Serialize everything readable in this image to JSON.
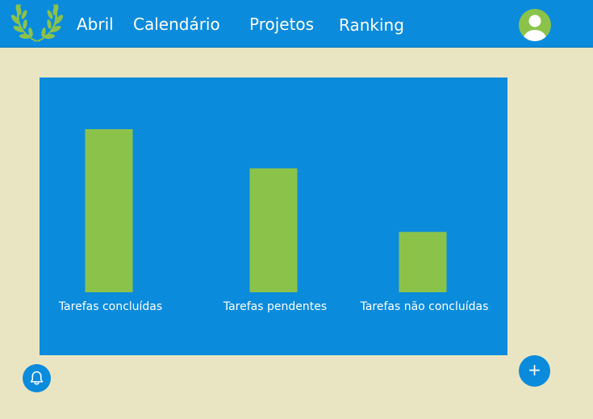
{
  "colors": {
    "background": "#e9e5c2",
    "primary": "#0b8bdc",
    "bar": "#8bc34a",
    "text_on_primary": "#ffffff"
  },
  "header": {
    "logo_icon": "laurel-wreath-icon",
    "nav": [
      {
        "label": "Abril"
      },
      {
        "label": "Calendário"
      },
      {
        "label": "Projetos"
      },
      {
        "label": "Ranking"
      }
    ],
    "avatar_icon": "user-avatar-icon"
  },
  "chart_data": {
    "type": "bar",
    "categories": [
      "Tarefas concluídas",
      "Tarefas pendentes",
      "Tarefas não concluídas"
    ],
    "values": [
      100,
      76,
      37
    ],
    "ylim": [
      0,
      100
    ],
    "grid": false
  },
  "actions": {
    "notifications_icon": "bell-icon",
    "add_icon": "plus-icon",
    "add_label": "+"
  }
}
